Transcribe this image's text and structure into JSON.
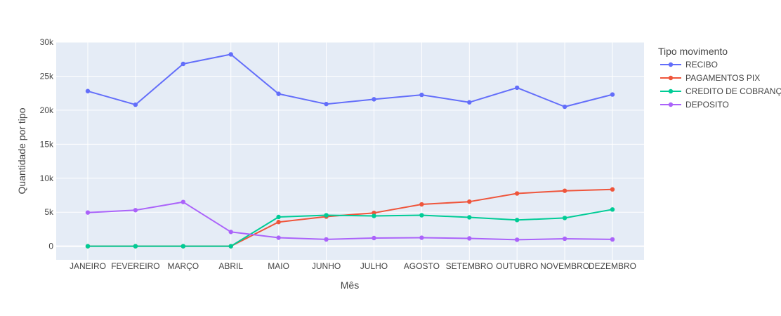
{
  "chart_data": {
    "type": "line",
    "xlabel": "Mês",
    "ylabel": "Quantidade por tipo",
    "ylim": [
      -2000,
      30000
    ],
    "yticks": [
      0,
      5000,
      10000,
      15000,
      20000,
      25000,
      30000
    ],
    "ytick_labels": [
      "0",
      "5k",
      "10k",
      "15k",
      "20k",
      "25k",
      "30k"
    ],
    "grid": true,
    "legend_title": "Tipo movimento",
    "legend_position": "right",
    "categories": [
      "JANEIRO",
      "FEVEREIRO",
      "MARÇO",
      "ABRIL",
      "MAIO",
      "JUNHO",
      "JULHO",
      "AGOSTO",
      "SETEMBRO",
      "OUTUBRO",
      "NOVEMBRO",
      "DEZEMBRO"
    ],
    "series": [
      {
        "name": "RECIBO",
        "color": "#636efa",
        "values": [
          22800,
          20800,
          26800,
          28200,
          22400,
          20900,
          21600,
          22250,
          21150,
          23300,
          20500,
          22300
        ]
      },
      {
        "name": "PAGAMENTOS PIX",
        "color": "#ef553b",
        "values": [
          0,
          0,
          0,
          0,
          3550,
          4350,
          4900,
          6150,
          6550,
          7750,
          8150,
          8350
        ]
      },
      {
        "name": "CREDITO DE COBRANÇA",
        "color": "#00cc96",
        "values": [
          0,
          0,
          0,
          0,
          4300,
          4550,
          4450,
          4550,
          4250,
          3850,
          4150,
          5400
        ]
      },
      {
        "name": "DEPOSITO",
        "color": "#ab63fa",
        "values": [
          4950,
          5300,
          6500,
          2100,
          1250,
          1000,
          1200,
          1250,
          1150,
          950,
          1100,
          1000
        ]
      }
    ]
  }
}
